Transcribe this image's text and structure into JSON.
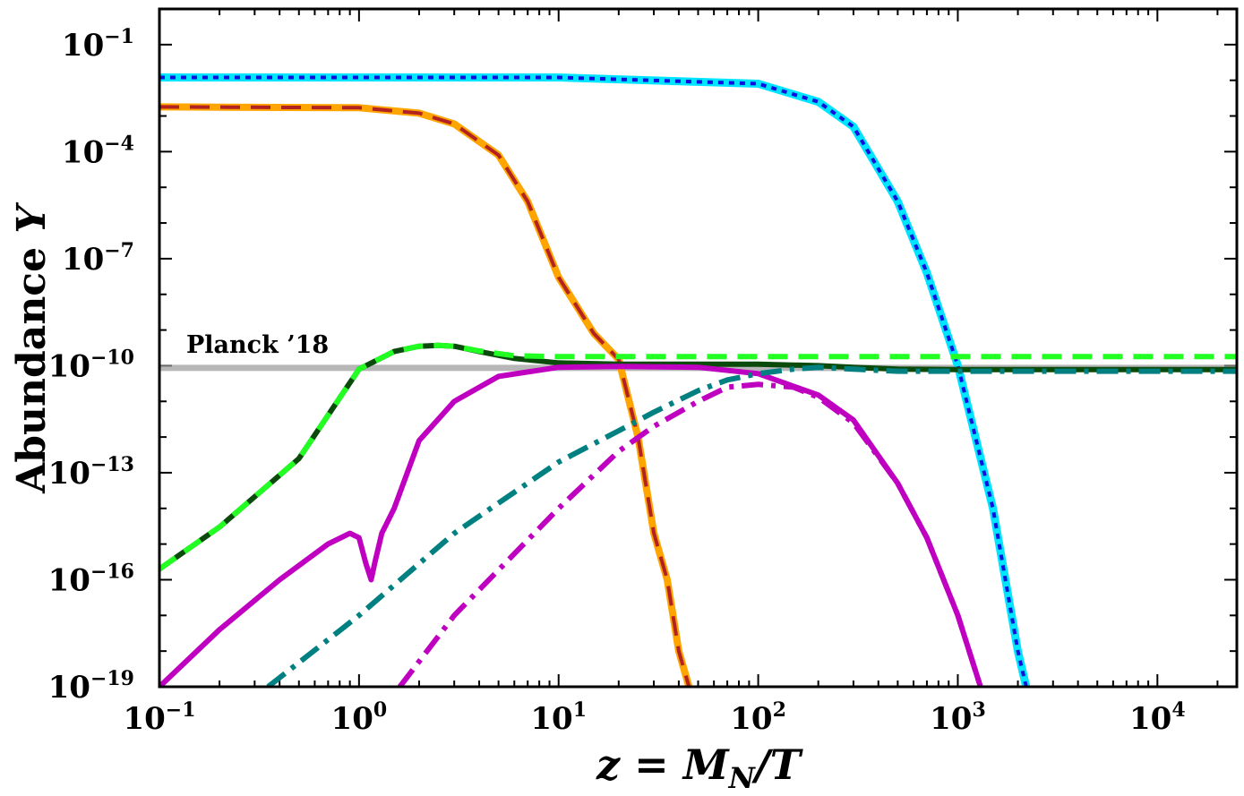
{
  "chart_data": {
    "type": "line",
    "title": "",
    "xlabel": "z = M_N/T",
    "ylabel": "Abundance Y",
    "xscale": "log",
    "yscale": "log",
    "xlim": [
      0.1,
      25000
    ],
    "ylim": [
      1e-19,
      1
    ],
    "x_tick_labels": [
      {
        "value": 0.1,
        "base": "10",
        "exp": "−1"
      },
      {
        "value": 1,
        "base": "10",
        "exp": "0"
      },
      {
        "value": 10,
        "base": "10",
        "exp": "1"
      },
      {
        "value": 100,
        "base": "10",
        "exp": "2"
      },
      {
        "value": 1000,
        "base": "10",
        "exp": "3"
      },
      {
        "value": 10000,
        "base": "10",
        "exp": "4"
      }
    ],
    "y_tick_labels": [
      {
        "value": 1e-19,
        "base": "10",
        "exp": "−19"
      },
      {
        "value": 1e-16,
        "base": "10",
        "exp": "−16"
      },
      {
        "value": 1e-13,
        "base": "10",
        "exp": "−13"
      },
      {
        "value": 1e-10,
        "base": "10",
        "exp": "−10"
      },
      {
        "value": 1e-07,
        "base": "10",
        "exp": "−7"
      },
      {
        "value": 0.0001,
        "base": "10",
        "exp": "−4"
      },
      {
        "value": 0.1,
        "base": "10",
        "exp": "−1"
      }
    ],
    "reference_line": {
      "label": "Planck ’18",
      "y": 8.7e-11,
      "color": "#999999"
    },
    "series": [
      {
        "name": "series-cyan-solid",
        "color": "#00e5ff",
        "style": "solid",
        "width": 9,
        "x": [
          0.1,
          10,
          100,
          200,
          300,
          500,
          700,
          1000,
          1500,
          2000,
          2200
        ],
        "y": [
          0.012,
          0.012,
          0.008,
          0.0025,
          0.0005,
          4e-06,
          4e-08,
          1e-10,
          1e-14,
          1e-18,
          1e-19
        ]
      },
      {
        "name": "series-blue-dotted",
        "color": "#1010dd",
        "style": "dotted",
        "width": 4,
        "x": [
          0.1,
          10,
          100,
          200,
          300,
          500,
          700,
          1000,
          1500,
          2000,
          2200
        ],
        "y": [
          0.012,
          0.012,
          0.008,
          0.0025,
          0.0005,
          4e-06,
          4e-08,
          1e-10,
          1e-14,
          1e-18,
          1e-19
        ]
      },
      {
        "name": "series-orange-solid",
        "color": "#ffa500",
        "style": "solid",
        "width": 8,
        "x": [
          0.1,
          1,
          2,
          3,
          5,
          7,
          10,
          15,
          20,
          25,
          30,
          35,
          40,
          45
        ],
        "y": [
          0.0018,
          0.0017,
          0.0012,
          0.0006,
          8e-05,
          4e-06,
          3e-08,
          8e-10,
          1.5e-10,
          1e-12,
          2e-15,
          1e-16,
          1e-18,
          1e-19
        ]
      },
      {
        "name": "series-brown-dashed",
        "color": "#b22222",
        "style": "dashed",
        "width": 4,
        "x": [
          0.1,
          1,
          2,
          3,
          5,
          7,
          10,
          15,
          20,
          25,
          30,
          35,
          40,
          45
        ],
        "y": [
          0.0018,
          0.0017,
          0.0012,
          0.0006,
          8e-05,
          4e-06,
          3e-08,
          8e-10,
          1.5e-10,
          1e-12,
          2e-15,
          1e-16,
          1e-18,
          1e-19
        ]
      },
      {
        "name": "series-darkgreen-solid",
        "color": "#0a4a0a",
        "style": "solid",
        "width": 6,
        "x": [
          0.1,
          0.2,
          0.5,
          1,
          1.5,
          2,
          2.5,
          3,
          4,
          6,
          10,
          20,
          50,
          100,
          200,
          300,
          500,
          1000,
          2000,
          10000,
          25000
        ],
        "y": [
          2e-16,
          3e-15,
          2.5e-13,
          8e-11,
          2.5e-10,
          3.5e-10,
          3.7e-10,
          3.5e-10,
          2.5e-10,
          1.6e-10,
          1.2e-10,
          1.1e-10,
          1.1e-10,
          1.1e-10,
          1e-10,
          9e-11,
          8e-11,
          7.8e-11,
          7.8e-11,
          7.8e-11,
          7.8e-11
        ]
      },
      {
        "name": "series-lime-dashed",
        "color": "#22ff22",
        "style": "dashed",
        "width": 6,
        "x": [
          0.1,
          0.2,
          0.5,
          1,
          1.5,
          2,
          2.5,
          3,
          4,
          6,
          10,
          20,
          100,
          1000,
          25000
        ],
        "y": [
          2e-16,
          3e-15,
          2.5e-13,
          8e-11,
          2.5e-10,
          3.5e-10,
          3.7e-10,
          3.5e-10,
          2.6e-10,
          1.9e-10,
          1.8e-10,
          1.8e-10,
          1.8e-10,
          1.8e-10,
          1.8e-10
        ]
      },
      {
        "name": "series-magenta-solid",
        "color": "#c000c0",
        "style": "solid",
        "width": 6,
        "x": [
          0.1,
          0.2,
          0.4,
          0.7,
          0.9,
          1.0,
          1.08,
          1.15,
          1.2,
          1.3,
          1.5,
          2,
          3,
          5,
          10,
          20,
          50,
          100,
          200,
          300,
          500,
          700,
          1000,
          1300
        ],
        "y": [
          1e-19,
          4e-18,
          1e-16,
          1e-15,
          2e-15,
          1.5e-15,
          3e-16,
          1e-16,
          3e-16,
          2e-15,
          1e-14,
          8e-13,
          1e-11,
          5e-11,
          9e-11,
          9.5e-11,
          9e-11,
          6e-11,
          1.5e-11,
          3e-12,
          5e-14,
          1.5e-15,
          1e-17,
          1e-19
        ]
      },
      {
        "name": "series-teal-dashdot",
        "color": "#008080",
        "style": "dashdot",
        "width": 6,
        "x": [
          0.35,
          1,
          3,
          10,
          20,
          30,
          50,
          70,
          100,
          150,
          200,
          300,
          500,
          1000,
          25000
        ],
        "y": [
          1e-19,
          1e-17,
          2e-15,
          2e-13,
          1.5e-12,
          5e-12,
          2e-11,
          4e-11,
          6e-11,
          8e-11,
          9e-11,
          8e-11,
          7e-11,
          7e-11,
          7e-11
        ]
      },
      {
        "name": "series-magenta-dashdot",
        "color": "#c000c0",
        "style": "dashdot",
        "width": 6,
        "x": [
          1.6,
          3,
          10,
          20,
          30,
          50,
          70,
          100,
          150,
          200,
          300,
          500,
          700,
          1000,
          1300
        ],
        "y": [
          1e-19,
          1e-17,
          1e-14,
          4e-13,
          2e-12,
          1e-11,
          2.5e-11,
          3e-11,
          2.5e-11,
          1.3e-11,
          2.5e-12,
          5e-14,
          1.5e-15,
          1e-17,
          1e-19
        ]
      }
    ]
  }
}
